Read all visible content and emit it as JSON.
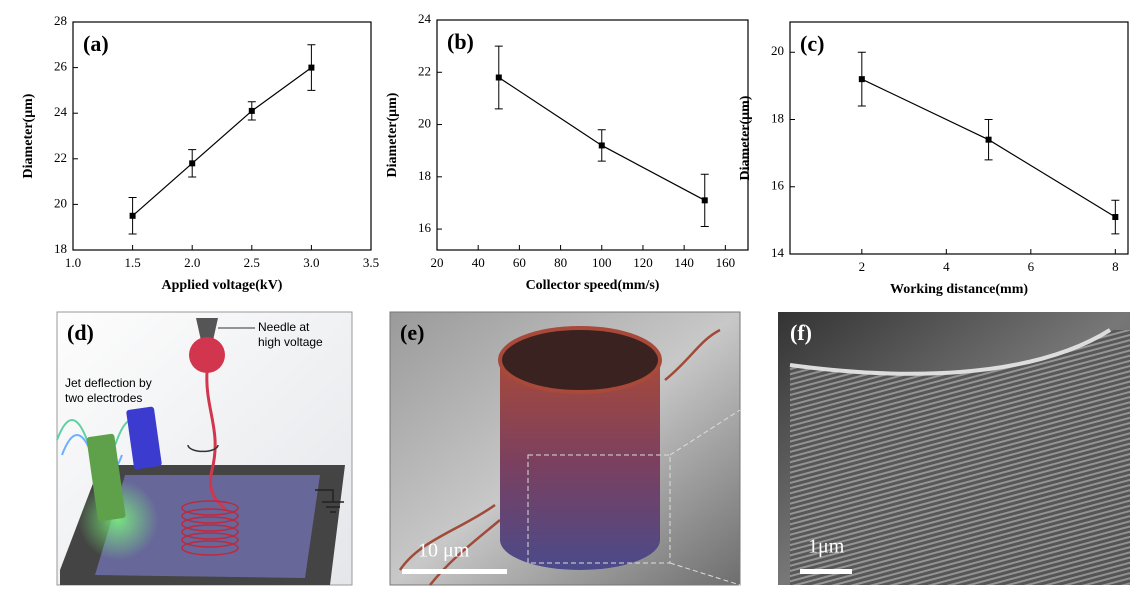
{
  "chart_data": [
    {
      "type": "line",
      "panel_label": "(a)",
      "x_label": "Applied voltage(kV)",
      "y_label": "Diameter(μm)",
      "x": [
        1.5,
        2.0,
        2.5,
        3.0
      ],
      "series": [
        {
          "values": [
            19.5,
            21.8,
            24.1,
            26.0
          ],
          "errors": [
            0.8,
            0.6,
            0.4,
            1.0
          ],
          "color": "#000000"
        }
      ],
      "xlim": [
        1.0,
        3.5
      ],
      "xticks": [
        {
          "value": 1.0,
          "label": "1.0"
        },
        1.5,
        {
          "value": 2.0,
          "label": "2.0"
        },
        2.5,
        {
          "value": 3.0,
          "label": "3.0"
        },
        3.5
      ],
      "ylim": [
        18,
        28
      ],
      "yticks": [
        18,
        20,
        22,
        24,
        26,
        28
      ]
    },
    {
      "type": "line",
      "panel_label": "(b)",
      "x_label": "Collector speed(mm/s)",
      "y_label": "Diameter(μm)",
      "x": [
        50,
        100,
        150
      ],
      "series": [
        {
          "values": [
            21.8,
            19.2,
            17.1
          ],
          "errors": [
            1.2,
            0.6,
            1.0
          ],
          "color": "#000000"
        }
      ],
      "xlim": [
        20,
        171
      ],
      "xticks": [
        20,
        40,
        60,
        80,
        100,
        120,
        140,
        160
      ],
      "ylim": [
        15.2,
        24
      ],
      "yticks": [
        16,
        18,
        20,
        22,
        24
      ]
    },
    {
      "type": "line",
      "panel_label": "(c)",
      "x_label": "Working distance(mm)",
      "y_label": "Diameter(μm)",
      "x": [
        2,
        5,
        8
      ],
      "series": [
        {
          "values": [
            19.2,
            17.4,
            15.1
          ],
          "errors": [
            0.8,
            0.6,
            0.5
          ],
          "color": "#000000"
        }
      ],
      "xlim": [
        0.3,
        8.3
      ],
      "xticks": [
        2,
        4,
        6,
        8
      ],
      "ylim": [
        14,
        20.9
      ],
      "yticks": [
        14,
        16,
        18,
        20
      ]
    }
  ],
  "image_panels": [
    {
      "label": "(d)",
      "needle_note": [
        "Needle at",
        "high voltage"
      ],
      "jet_note": [
        "Jet deflection by",
        "two electrodes"
      ]
    },
    {
      "label": "(e)",
      "scale_bar": "10 μm"
    },
    {
      "label": "(f)",
      "scale_bar": "1μm"
    }
  ]
}
